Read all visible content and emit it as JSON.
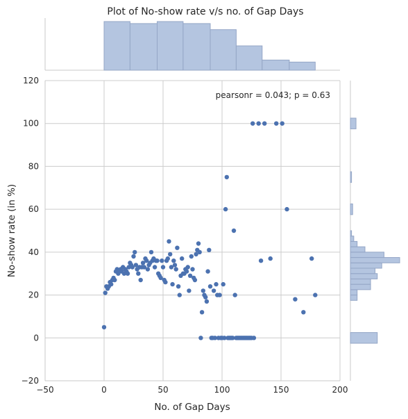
{
  "chart_data": {
    "type": "scatter",
    "title": "Plot of No-show rate v/s no. of Gap Days",
    "xlabel": "No. of Gap Days",
    "ylabel": "No-show rate (in %)",
    "annotation": "pearsonr = 0.043; p = 0.63",
    "xlim": [
      -50,
      200
    ],
    "ylim": [
      -20,
      120
    ],
    "xticks": [
      "−50",
      "0",
      "50",
      "100",
      "150",
      "200"
    ],
    "yticks": [
      "−20",
      "0",
      "20",
      "40",
      "60",
      "80",
      "100",
      "120"
    ],
    "grid": true,
    "colors": {
      "points": "#4c72b0",
      "hist_fill": "#b4c5e0",
      "hist_edge": "#94a6c6",
      "grid": "#cccccc",
      "axis": "#c8c8c8"
    },
    "points": [
      [
        0,
        5
      ],
      [
        1,
        21
      ],
      [
        2,
        24
      ],
      [
        3,
        23
      ],
      [
        4,
        24
      ],
      [
        5,
        26
      ],
      [
        6,
        25
      ],
      [
        7,
        27
      ],
      [
        8,
        28
      ],
      [
        9,
        27
      ],
      [
        10,
        31
      ],
      [
        11,
        32
      ],
      [
        12,
        30
      ],
      [
        13,
        31
      ],
      [
        14,
        32
      ],
      [
        15,
        31
      ],
      [
        16,
        33
      ],
      [
        17,
        30
      ],
      [
        18,
        32
      ],
      [
        19,
        31
      ],
      [
        20,
        30
      ],
      [
        21,
        33
      ],
      [
        22,
        35
      ],
      [
        23,
        34
      ],
      [
        24,
        33
      ],
      [
        25,
        38
      ],
      [
        26,
        40
      ],
      [
        27,
        34
      ],
      [
        28,
        32
      ],
      [
        29,
        30
      ],
      [
        30,
        33
      ],
      [
        31,
        27
      ],
      [
        32,
        33
      ],
      [
        33,
        35
      ],
      [
        34,
        33
      ],
      [
        35,
        37
      ],
      [
        36,
        36
      ],
      [
        37,
        32
      ],
      [
        38,
        34
      ],
      [
        39,
        35
      ],
      [
        40,
        40
      ],
      [
        41,
        36
      ],
      [
        42,
        37
      ],
      [
        43,
        33
      ],
      [
        44,
        36
      ],
      [
        45,
        36
      ],
      [
        46,
        30
      ],
      [
        47,
        29
      ],
      [
        48,
        28
      ],
      [
        49,
        36
      ],
      [
        50,
        33
      ],
      [
        51,
        27
      ],
      [
        52,
        26
      ],
      [
        53,
        36
      ],
      [
        54,
        37
      ],
      [
        55,
        45
      ],
      [
        56,
        39
      ],
      [
        57,
        33
      ],
      [
        58,
        25
      ],
      [
        59,
        36
      ],
      [
        60,
        34
      ],
      [
        61,
        32
      ],
      [
        62,
        42
      ],
      [
        63,
        24
      ],
      [
        64,
        20
      ],
      [
        65,
        29
      ],
      [
        66,
        37
      ],
      [
        67,
        30
      ],
      [
        68,
        30
      ],
      [
        69,
        32
      ],
      [
        70,
        31
      ],
      [
        71,
        33
      ],
      [
        72,
        22
      ],
      [
        73,
        29
      ],
      [
        74,
        38
      ],
      [
        75,
        32
      ],
      [
        76,
        28
      ],
      [
        77,
        27
      ],
      [
        78,
        39
      ],
      [
        79,
        41
      ],
      [
        80,
        44
      ],
      [
        81,
        40
      ],
      [
        82,
        0
      ],
      [
        83,
        12
      ],
      [
        84,
        22
      ],
      [
        85,
        20
      ],
      [
        86,
        19
      ],
      [
        87,
        17
      ],
      [
        88,
        31
      ],
      [
        89,
        41
      ],
      [
        90,
        24
      ],
      [
        91,
        0
      ],
      [
        92,
        0
      ],
      [
        93,
        22
      ],
      [
        94,
        0
      ],
      [
        95,
        25
      ],
      [
        96,
        20
      ],
      [
        97,
        0
      ],
      [
        98,
        20
      ],
      [
        99,
        0
      ],
      [
        100,
        0
      ],
      [
        101,
        25
      ],
      [
        102,
        0
      ],
      [
        103,
        60
      ],
      [
        104,
        75
      ],
      [
        105,
        0
      ],
      [
        106,
        0
      ],
      [
        107,
        0
      ],
      [
        108,
        0
      ],
      [
        109,
        0
      ],
      [
        110,
        50
      ],
      [
        111,
        20
      ],
      [
        112,
        0
      ],
      [
        113,
        0
      ],
      [
        114,
        0
      ],
      [
        115,
        0
      ],
      [
        116,
        0
      ],
      [
        117,
        0
      ],
      [
        118,
        0
      ],
      [
        119,
        0
      ],
      [
        120,
        0
      ],
      [
        121,
        0
      ],
      [
        122,
        0
      ],
      [
        123,
        0
      ],
      [
        124,
        0
      ],
      [
        125,
        0
      ],
      [
        126,
        100
      ],
      [
        127,
        0
      ],
      [
        131,
        100
      ],
      [
        133,
        36
      ],
      [
        136,
        100
      ],
      [
        141,
        37
      ],
      [
        146,
        100
      ],
      [
        151,
        100
      ],
      [
        155,
        60
      ],
      [
        162,
        18
      ],
      [
        169,
        12
      ],
      [
        176,
        37
      ],
      [
        179,
        20
      ]
    ],
    "x_hist": {
      "bins": [
        [
          0,
          22
        ],
        [
          22,
          45
        ],
        [
          45,
          67
        ],
        [
          67,
          90
        ],
        [
          90,
          112
        ],
        [
          112,
          134
        ],
        [
          134,
          157
        ],
        [
          157,
          179
        ]
      ],
      "counts": [
        24,
        23,
        24,
        23,
        20,
        12,
        5,
        4
      ]
    },
    "y_hist": {
      "bins": [
        [
          -2.5,
          2.5
        ],
        [
          17.5,
          20
        ],
        [
          20,
          22.5
        ],
        [
          22.5,
          25
        ],
        [
          25,
          27.5
        ],
        [
          27.5,
          30
        ],
        [
          30,
          32.5
        ],
        [
          32.5,
          35
        ],
        [
          35,
          37.5
        ],
        [
          37.5,
          40
        ],
        [
          40,
          42.5
        ],
        [
          42.5,
          45
        ],
        [
          45,
          47.5
        ],
        [
          47.5,
          50
        ],
        [
          57.5,
          62.5
        ],
        [
          72.5,
          77.5
        ],
        [
          97.5,
          102.5
        ]
      ],
      "counts": [
        24,
        6,
        6,
        18,
        18,
        24,
        22,
        28,
        44,
        30,
        13,
        6,
        3,
        1,
        2,
        1,
        5
      ]
    }
  }
}
